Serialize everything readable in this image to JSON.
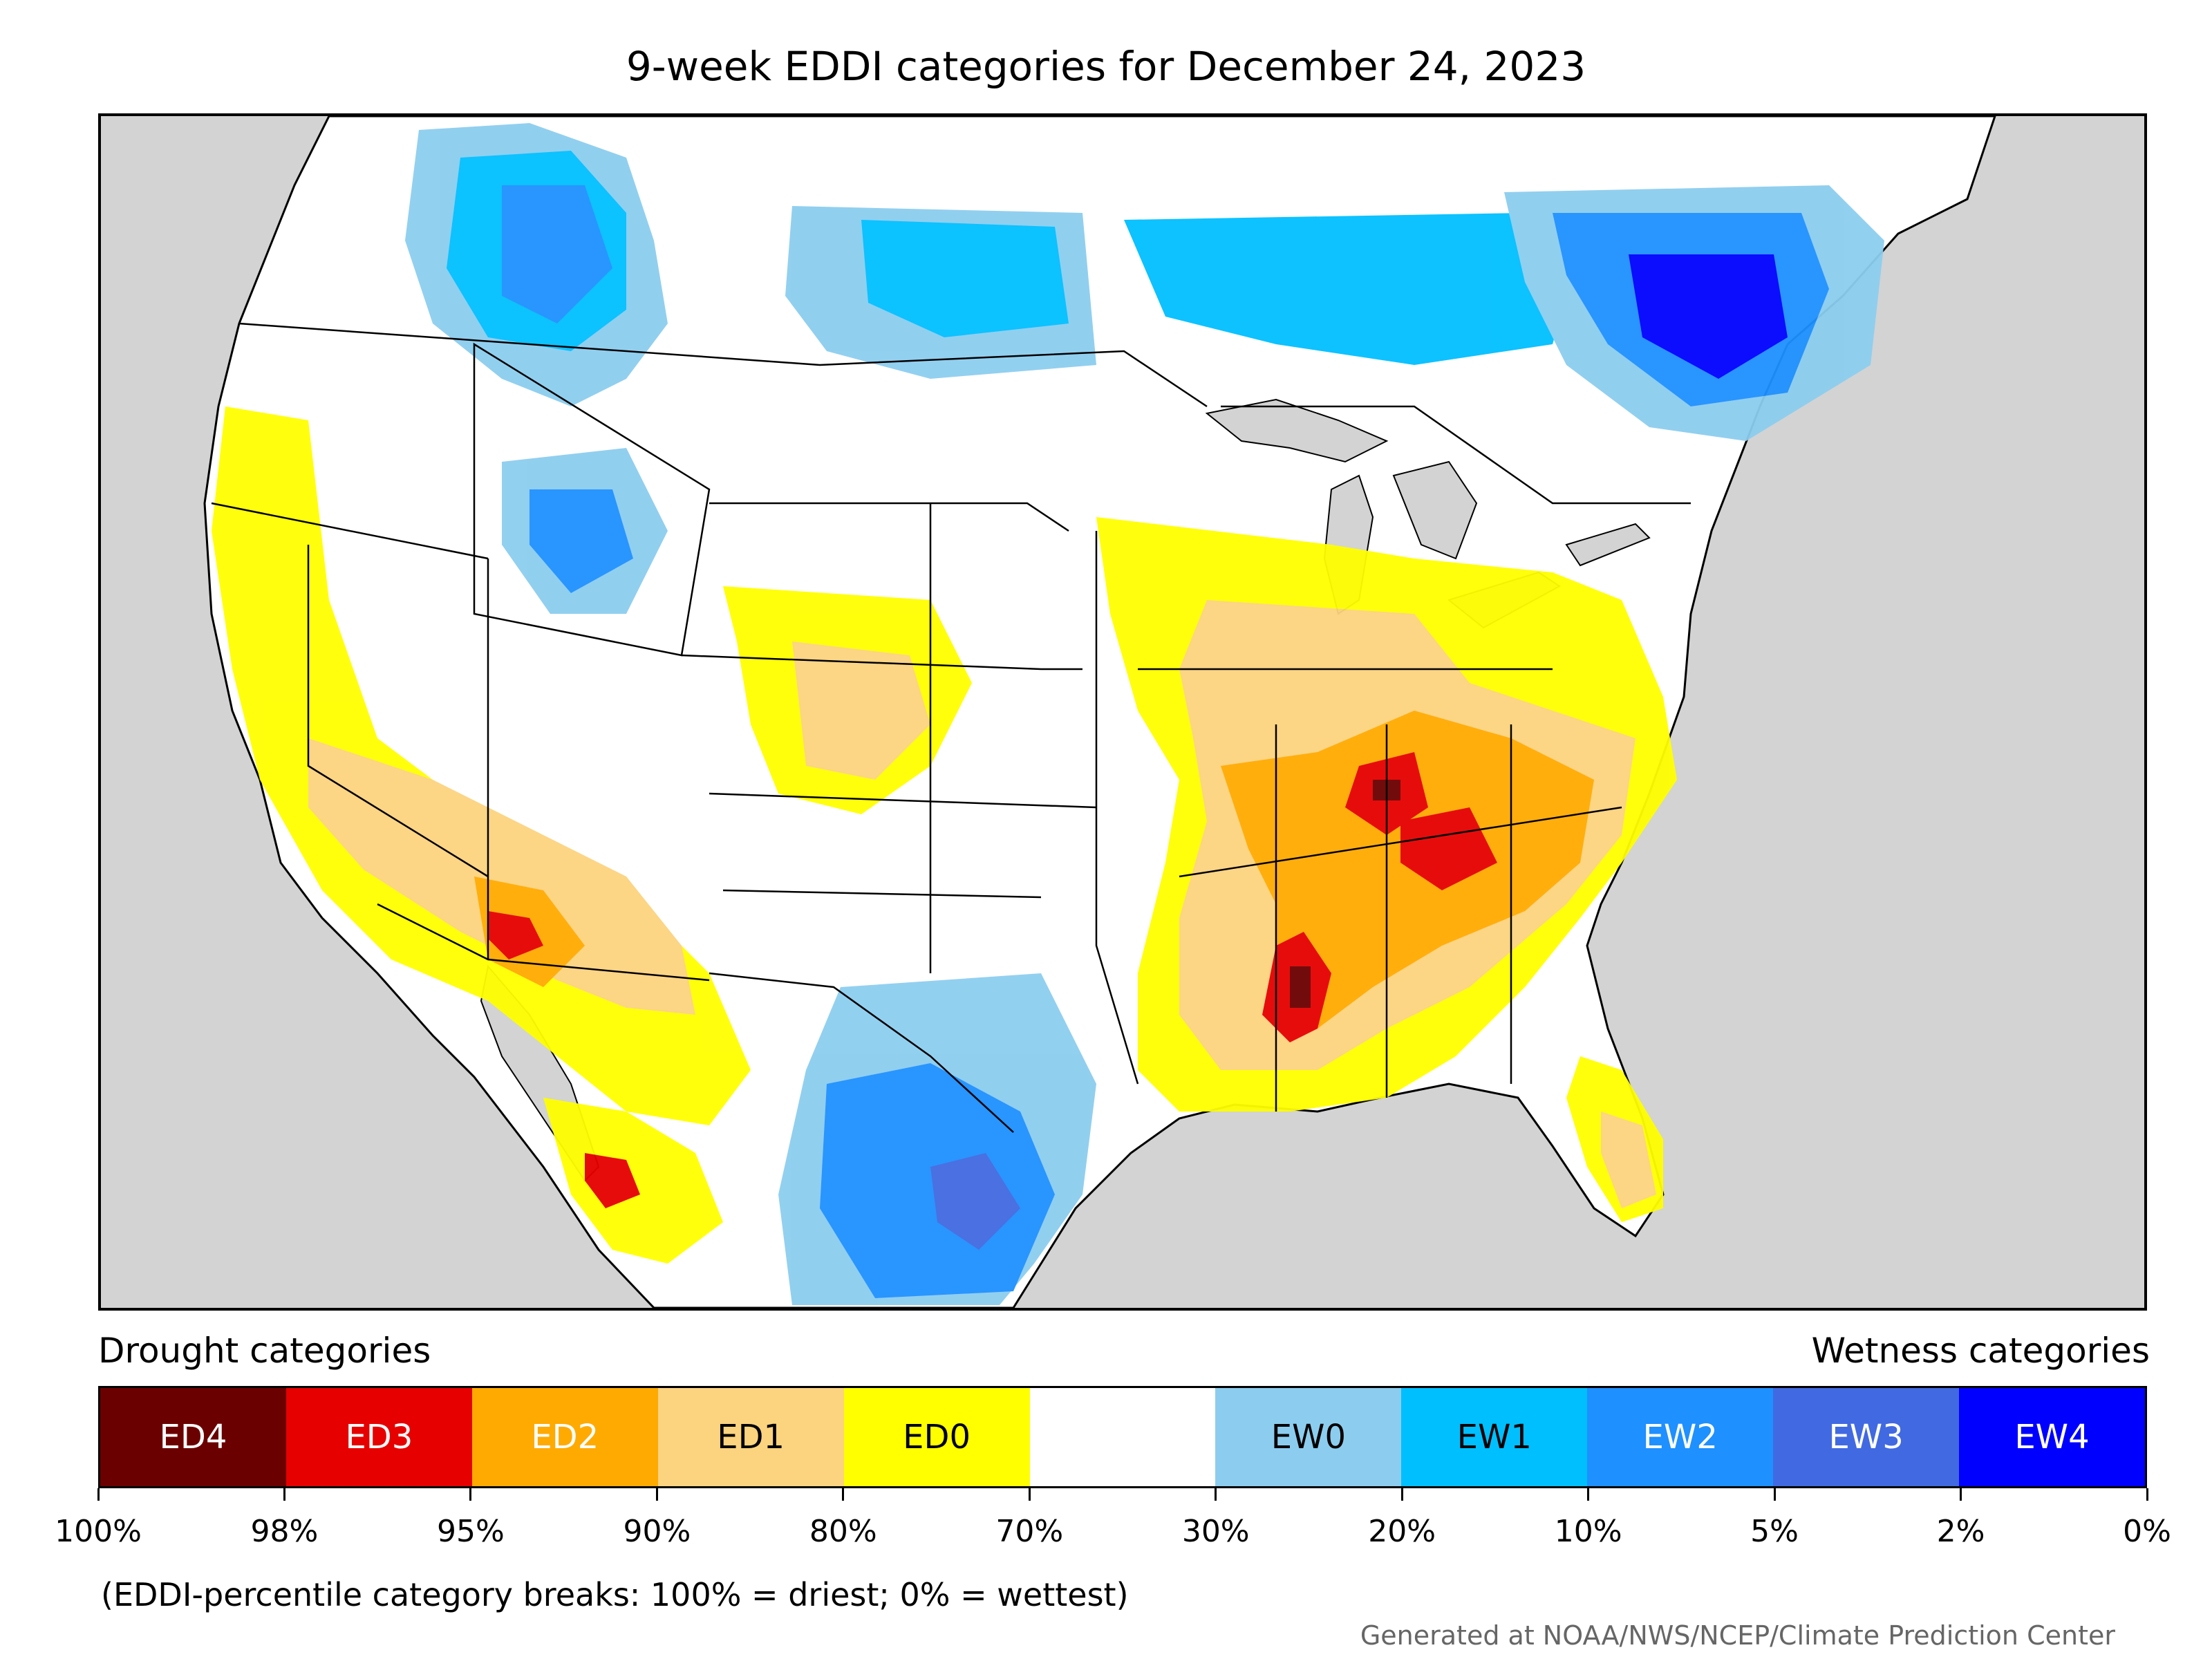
{
  "title": "9-week EDDI categories for December 24, 2023",
  "map": {
    "background_color": "#d3d3d3",
    "land_color": "#ffffff"
  },
  "legend": {
    "drought_label": "Drought categories",
    "wetness_label": "Wetness categories",
    "categories": [
      {
        "label": "ED4",
        "color": "#6b0000",
        "text_color": "#ffffff"
      },
      {
        "label": "ED3",
        "color": "#e60000",
        "text_color": "#ffffff"
      },
      {
        "label": "ED2",
        "color": "#ffaa00",
        "text_color": "#ffffff"
      },
      {
        "label": "ED1",
        "color": "#fcd37f",
        "text_color": "#000000"
      },
      {
        "label": "ED0",
        "color": "#ffff00",
        "text_color": "#000000"
      },
      {
        "label": "",
        "color": "#ffffff",
        "text_color": "#000000"
      },
      {
        "label": "EW0",
        "color": "#8ccdef",
        "text_color": "#000000"
      },
      {
        "label": "EW1",
        "color": "#00bfff",
        "text_color": "#000000"
      },
      {
        "label": "EW2",
        "color": "#1e90ff",
        "text_color": "#ffffff"
      },
      {
        "label": "EW3",
        "color": "#4169e1",
        "text_color": "#ffffff"
      },
      {
        "label": "EW4",
        "color": "#0000ff",
        "text_color": "#ffffff"
      }
    ],
    "tick_labels": [
      "100%",
      "98%",
      "95%",
      "90%",
      "80%",
      "70%",
      "30%",
      "20%",
      "10%",
      "5%",
      "2%",
      "0%"
    ]
  },
  "note": "(EDDI-percentile category breaks: 100% = driest; 0% = wettest)",
  "credit": "Generated at NOAA/NWS/NCEP/Climate Prediction Center"
}
